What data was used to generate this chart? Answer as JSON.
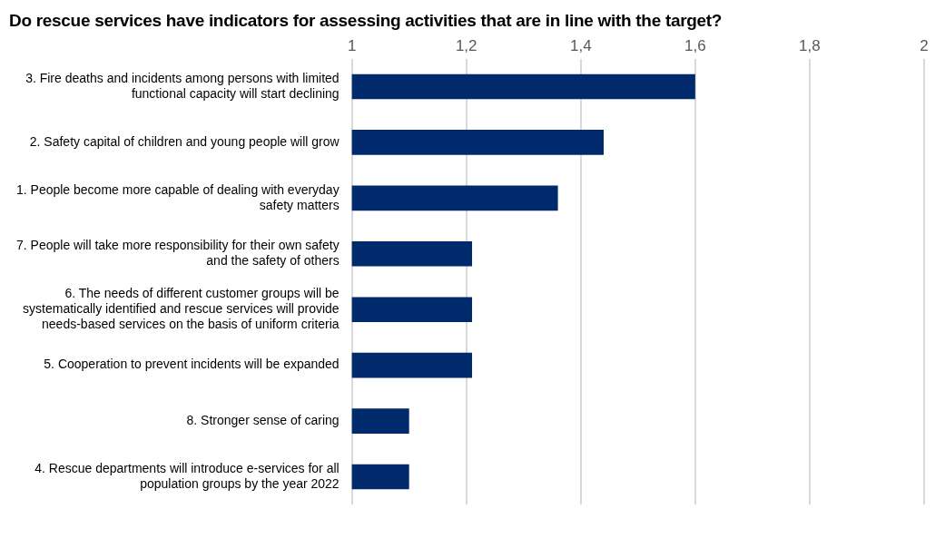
{
  "chart_data": {
    "type": "bar",
    "orientation": "horizontal",
    "title": "Do rescue services have indicators for assessing activities that are in line with the target?",
    "categories": [
      "3. Fire deaths and incidents among persons with limited functional capacity will start declining",
      "2. Safety capital of children and young people will grow",
      "1. People become more capable of dealing with everyday safety matters",
      "7. People will take more responsibility for their own safety and the safety of others",
      "6. The needs of different customer groups will be systematically identified and rescue services will provide needs-based services on the basis of uniform criteria",
      "5. Cooperation to prevent incidents will be expanded",
      "8. Stronger sense of caring",
      "4. Rescue departments will introduce e-services for all population groups by the year 2022"
    ],
    "values": [
      1.6,
      1.44,
      1.36,
      1.21,
      1.21,
      1.21,
      1.1,
      1.1
    ],
    "color": "#002a6c",
    "xlim": [
      1,
      2
    ],
    "xticks": [
      1,
      {
        "value": 1.2,
        "label": "1,2"
      },
      {
        "value": 1.4,
        "label": "1,4"
      },
      {
        "value": 1.6,
        "label": "1,6"
      },
      {
        "value": 1.8,
        "label": "1,8"
      },
      2
    ],
    "grid": "x",
    "legend": false
  }
}
